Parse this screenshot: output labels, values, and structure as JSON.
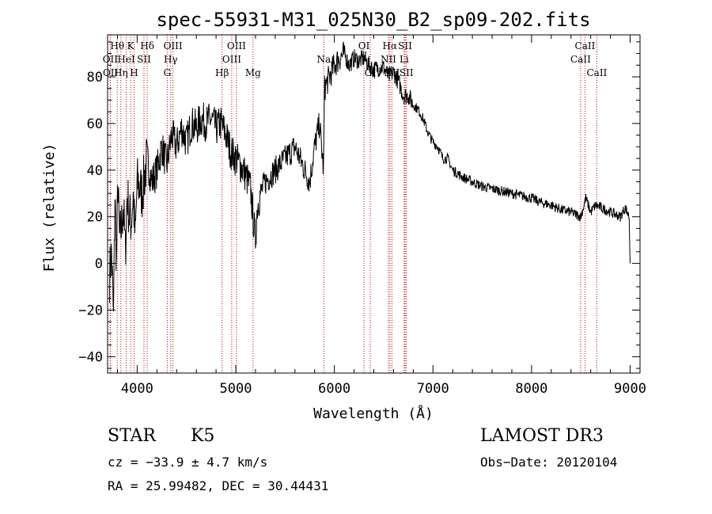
{
  "chart_data": {
    "type": "line",
    "title": "spec-55931-M31_025N30_B2_sp09-202.fits",
    "xlabel": "Wavelength (Å)",
    "ylabel": "Flux (relative)",
    "xlim": [
      3700,
      9100
    ],
    "ylim": [
      -47,
      98
    ],
    "x_ticks": [
      4000,
      5000,
      6000,
      7000,
      8000,
      9000
    ],
    "y_ticks": [
      -40,
      -20,
      0,
      20,
      40,
      60,
      80
    ],
    "grid": false,
    "series": [
      {
        "name": "flux",
        "color": "#000000",
        "anchors": [
          [
            3720,
            -5
          ],
          [
            3740,
            5
          ],
          [
            3760,
            -25
          ],
          [
            3775,
            30
          ],
          [
            3790,
            0
          ],
          [
            3805,
            35
          ],
          [
            3820,
            10
          ],
          [
            3840,
            15
          ],
          [
            3860,
            25
          ],
          [
            3880,
            5
          ],
          [
            3900,
            30
          ],
          [
            3920,
            20
          ],
          [
            3940,
            18
          ],
          [
            3960,
            30
          ],
          [
            3980,
            10
          ],
          [
            4000,
            35
          ],
          [
            4050,
            30
          ],
          [
            4100,
            45
          ],
          [
            4150,
            35
          ],
          [
            4200,
            40
          ],
          [
            4250,
            50
          ],
          [
            4300,
            42
          ],
          [
            4350,
            55
          ],
          [
            4400,
            50
          ],
          [
            4450,
            58
          ],
          [
            4500,
            52
          ],
          [
            4550,
            60
          ],
          [
            4600,
            58
          ],
          [
            4650,
            62
          ],
          [
            4700,
            60
          ],
          [
            4750,
            62
          ],
          [
            4800,
            58
          ],
          [
            4850,
            60
          ],
          [
            4900,
            55
          ],
          [
            4950,
            48
          ],
          [
            5000,
            45
          ],
          [
            5050,
            42
          ],
          [
            5100,
            38
          ],
          [
            5150,
            32
          ],
          [
            5180,
            18
          ],
          [
            5200,
            10
          ],
          [
            5220,
            25
          ],
          [
            5250,
            30
          ],
          [
            5300,
            35
          ],
          [
            5400,
            40
          ],
          [
            5500,
            45
          ],
          [
            5600,
            50
          ],
          [
            5700,
            40
          ],
          [
            5750,
            35
          ],
          [
            5800,
            50
          ],
          [
            5850,
            60
          ],
          [
            5890,
            40
          ],
          [
            5900,
            75
          ],
          [
            5950,
            80
          ],
          [
            6000,
            85
          ],
          [
            6050,
            88
          ],
          [
            6100,
            90
          ],
          [
            6150,
            85
          ],
          [
            6200,
            88
          ],
          [
            6250,
            87
          ],
          [
            6300,
            88
          ],
          [
            6350,
            85
          ],
          [
            6400,
            83
          ],
          [
            6450,
            84
          ],
          [
            6500,
            84
          ],
          [
            6550,
            80
          ],
          [
            6600,
            82
          ],
          [
            6650,
            78
          ],
          [
            6700,
            72
          ],
          [
            6750,
            72
          ],
          [
            6800,
            68
          ],
          [
            6850,
            66
          ],
          [
            6900,
            62
          ],
          [
            6950,
            56
          ],
          [
            7000,
            52
          ],
          [
            7050,
            50
          ],
          [
            7100,
            45
          ],
          [
            7150,
            45
          ],
          [
            7200,
            40
          ],
          [
            7300,
            37
          ],
          [
            7400,
            35
          ],
          [
            7500,
            33
          ],
          [
            7600,
            32
          ],
          [
            7700,
            31
          ],
          [
            7800,
            30
          ],
          [
            7900,
            29
          ],
          [
            8000,
            28
          ],
          [
            8100,
            26
          ],
          [
            8200,
            25
          ],
          [
            8300,
            23
          ],
          [
            8400,
            22
          ],
          [
            8450,
            21
          ],
          [
            8500,
            20
          ],
          [
            8550,
            28
          ],
          [
            8600,
            22
          ],
          [
            8650,
            25
          ],
          [
            8700,
            24
          ],
          [
            8800,
            22
          ],
          [
            8900,
            20
          ],
          [
            8950,
            24
          ],
          [
            8990,
            20
          ],
          [
            9000,
            0
          ]
        ]
      }
    ],
    "lines": [
      {
        "label": "Hθ",
        "wl": 3798,
        "row": 0
      },
      {
        "label": "OII",
        "wl": 3727,
        "row": 1
      },
      {
        "label": "OII",
        "wl": 3729,
        "row": 2
      },
      {
        "label": "Hη",
        "wl": 3835,
        "row": 2
      },
      {
        "label": "HeI",
        "wl": 3889,
        "row": 1
      },
      {
        "label": "K",
        "wl": 3934,
        "row": 0
      },
      {
        "label": "H",
        "wl": 3969,
        "row": 2
      },
      {
        "label": "SII",
        "wl": 4069,
        "row": 1
      },
      {
        "label": "Hδ",
        "wl": 4102,
        "row": 0
      },
      {
        "label": "OIII",
        "wl": 4363,
        "row": 0
      },
      {
        "label": "Hγ",
        "wl": 4340,
        "row": 1
      },
      {
        "label": "G",
        "wl": 4305,
        "row": 2
      },
      {
        "label": "Hβ",
        "wl": 4861,
        "row": 2
      },
      {
        "label": "OIII",
        "wl": 5007,
        "row": 0
      },
      {
        "label": "OIII",
        "wl": 4959,
        "row": 1
      },
      {
        "label": "Mg",
        "wl": 5175,
        "row": 2
      },
      {
        "label": "Na",
        "wl": 5893,
        "row": 1
      },
      {
        "label": "OI",
        "wl": 6300,
        "row": 0
      },
      {
        "label": "OI",
        "wl": 6364,
        "row": 2
      },
      {
        "label": "Hα",
        "wl": 6563,
        "row": 0
      },
      {
        "label": "NII",
        "wl": 6548,
        "row": 1
      },
      {
        "label": "NII",
        "wl": 6584,
        "row": 2
      },
      {
        "label": "SII",
        "wl": 6717,
        "row": 0
      },
      {
        "label": "Li",
        "wl": 6708,
        "row": 1
      },
      {
        "label": "SII",
        "wl": 6731,
        "row": 2
      },
      {
        "label": "CaII",
        "wl": 8542,
        "row": 0
      },
      {
        "label": "CaII",
        "wl": 8498,
        "row": 1
      },
      {
        "label": "CaII",
        "wl": 8662,
        "row": 2
      }
    ]
  },
  "info": {
    "class": "STAR",
    "subclass": "K5",
    "survey": "LAMOST DR3",
    "cz": "cz = −33.9 ± 4.7 km/s",
    "obs_date": "Obs−Date: 20120104",
    "radec": "RA =  25.99482, DEC =  30.44431"
  },
  "colors": {
    "line_marker": "#c00000",
    "spectrum": "#000000",
    "axes": "#000000"
  }
}
